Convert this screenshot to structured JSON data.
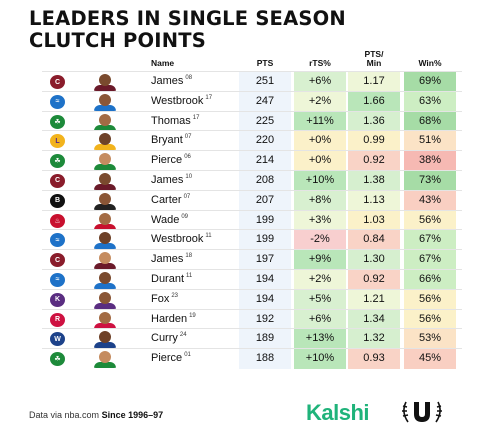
{
  "title_lines": [
    "LEADERS IN SINGLE SEASON",
    "CLUTCH POINTS"
  ],
  "headers": {
    "name": "Name",
    "pts": "PTS",
    "rts": "rTS%",
    "pts_min": "PTS/\nMin",
    "win": "Win%"
  },
  "rows": [
    {
      "team": "cavaliers-logo",
      "team_color": "#8a1c2b",
      "team_glyph": "C",
      "name": "James",
      "year": "08",
      "pts": "251",
      "rts": "+6%",
      "pts_min": "1.17",
      "win": "69%"
    },
    {
      "team": "thunder-logo",
      "team_color": "#1e72c8",
      "team_glyph": "≈",
      "name": "Westbrook",
      "year": "17",
      "pts": "247",
      "rts": "+2%",
      "pts_min": "1.66",
      "win": "63%"
    },
    {
      "team": "celtics-logo",
      "team_color": "#1d8a3a",
      "team_glyph": "☘",
      "name": "Thomas",
      "year": "17",
      "pts": "225",
      "rts": "+11%",
      "pts_min": "1.36",
      "win": "68%"
    },
    {
      "team": "lakers-logo",
      "team_color": "#f2b31c",
      "team_glyph": "L",
      "name": "Bryant",
      "year": "07",
      "pts": "220",
      "rts": "+0%",
      "pts_min": "0.99",
      "win": "51%"
    },
    {
      "team": "celtics-logo",
      "team_color": "#1d8a3a",
      "team_glyph": "☘",
      "name": "Pierce",
      "year": "06",
      "pts": "214",
      "rts": "+0%",
      "pts_min": "0.92",
      "win": "38%"
    },
    {
      "team": "cavaliers-logo",
      "team_color": "#8a1c2b",
      "team_glyph": "C",
      "name": "James",
      "year": "10",
      "pts": "208",
      "rts": "+10%",
      "pts_min": "1.38",
      "win": "73%"
    },
    {
      "team": "nets-logo",
      "team_color": "#111111",
      "team_glyph": "B",
      "name": "Carter",
      "year": "07",
      "pts": "207",
      "rts": "+8%",
      "pts_min": "1.13",
      "win": "43%"
    },
    {
      "team": "heat-logo",
      "team_color": "#c8102e",
      "team_glyph": "♨",
      "name": "Wade",
      "year": "09",
      "pts": "199",
      "rts": "+3%",
      "pts_min": "1.03",
      "win": "56%"
    },
    {
      "team": "thunder-logo",
      "team_color": "#1e72c8",
      "team_glyph": "≈",
      "name": "Westbrook",
      "year": "11",
      "pts": "199",
      "rts": "-2%",
      "pts_min": "0.84",
      "win": "67%"
    },
    {
      "team": "cavaliers-logo",
      "team_color": "#8a1c2b",
      "team_glyph": "C",
      "name": "James",
      "year": "18",
      "pts": "197",
      "rts": "+9%",
      "pts_min": "1.30",
      "win": "67%"
    },
    {
      "team": "thunder-logo",
      "team_color": "#1e72c8",
      "team_glyph": "≈",
      "name": "Durant",
      "year": "11",
      "pts": "194",
      "rts": "+2%",
      "pts_min": "0.92",
      "win": "66%"
    },
    {
      "team": "kings-logo",
      "team_color": "#5a2d81",
      "team_glyph": "K",
      "name": "Fox",
      "year": "23",
      "pts": "194",
      "rts": "+5%",
      "pts_min": "1.21",
      "win": "56%"
    },
    {
      "team": "rockets-logo",
      "team_color": "#ce1141",
      "team_glyph": "R",
      "name": "Harden",
      "year": "19",
      "pts": "192",
      "rts": "+6%",
      "pts_min": "1.34",
      "win": "56%"
    },
    {
      "team": "warriors-logo",
      "team_color": "#1d428a",
      "team_glyph": "W",
      "name": "Curry",
      "year": "24",
      "pts": "189",
      "rts": "+13%",
      "pts_min": "1.32",
      "win": "53%"
    },
    {
      "team": "celtics-logo",
      "team_color": "#1d8a3a",
      "team_glyph": "☘",
      "name": "Pierce",
      "year": "01",
      "pts": "188",
      "rts": "+10%",
      "pts_min": "0.93",
      "win": "45%"
    }
  ],
  "footer": {
    "source": "Data via nba.com",
    "since": "Since 1996–97",
    "brand": "Kalshi"
  }
}
